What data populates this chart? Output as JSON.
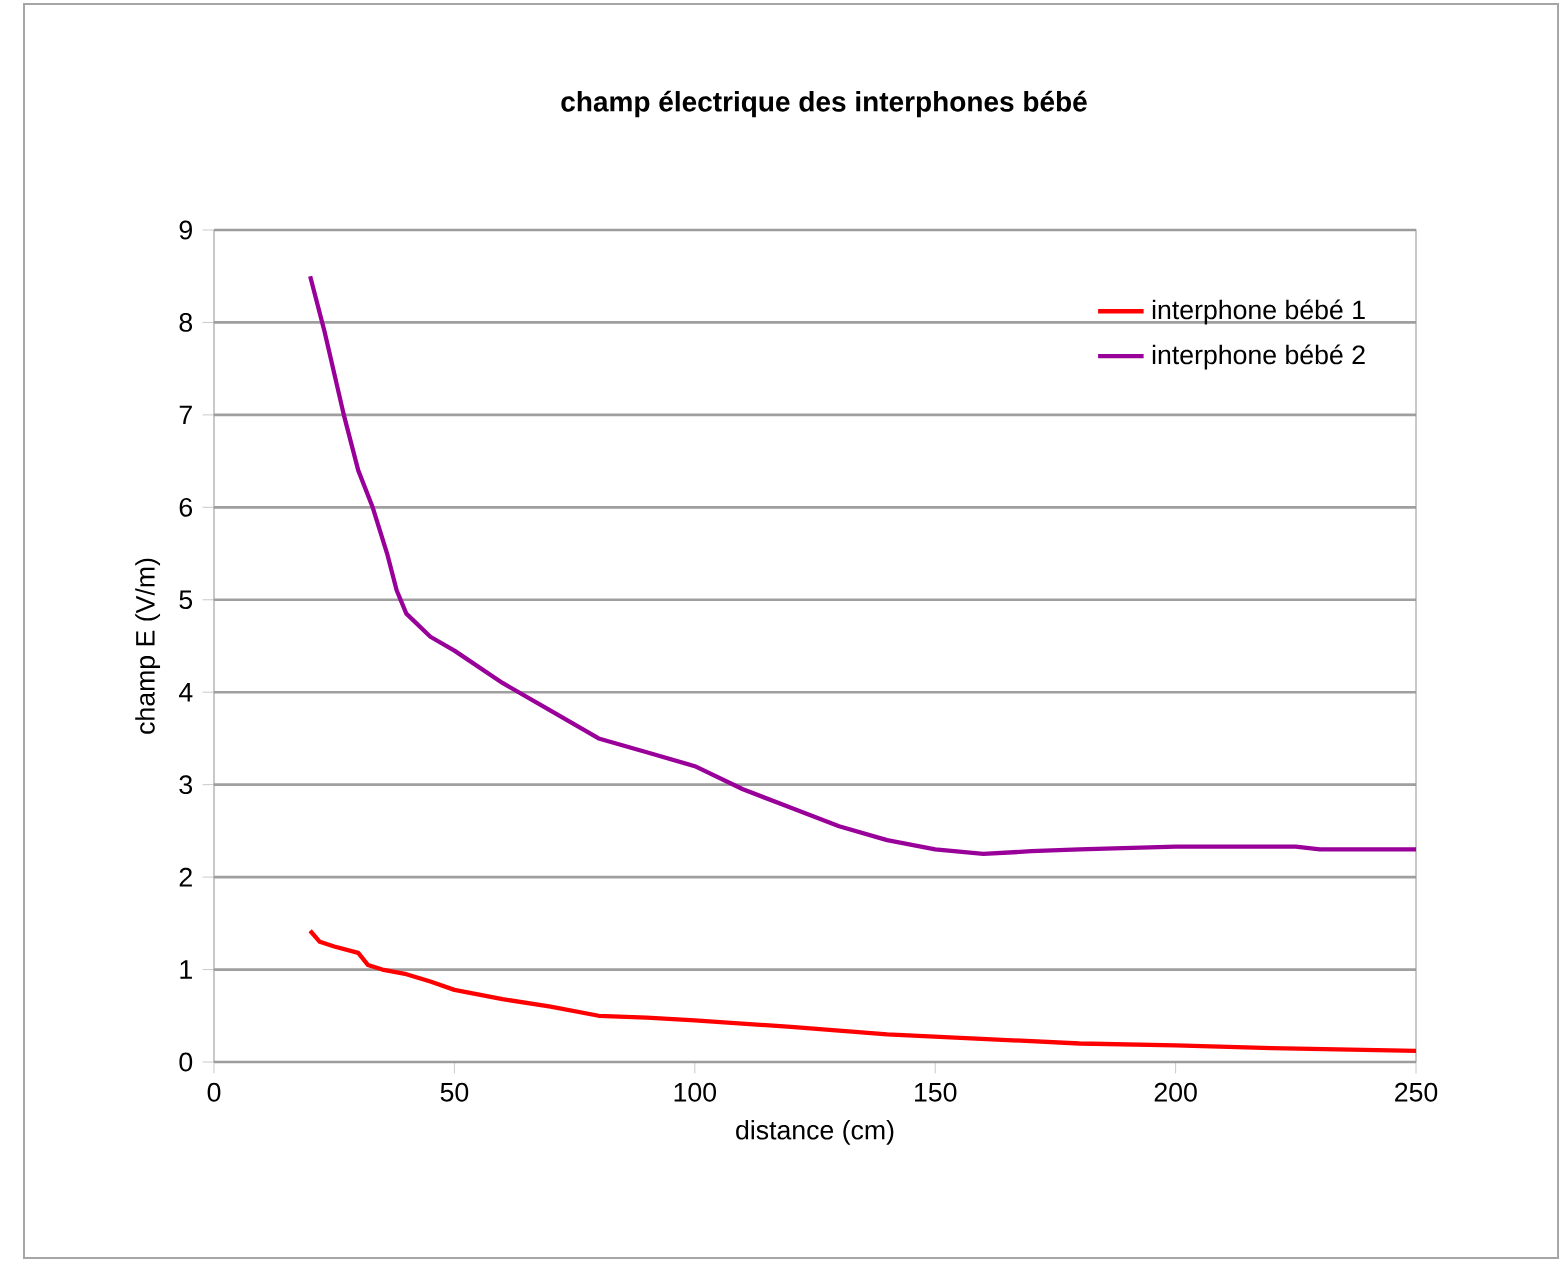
{
  "chart_data": {
    "type": "line",
    "title": "champ électrique des interphones bébé",
    "xlabel": "distance (cm)",
    "ylabel": "champ E (V/m)",
    "xlim": [
      0,
      250
    ],
    "xticks": [
      0,
      50,
      100,
      150,
      200,
      250
    ],
    "ylim": [
      0,
      9
    ],
    "yticks": [
      0,
      1,
      2,
      3,
      4,
      5,
      6,
      7,
      8,
      9
    ],
    "grid": "y",
    "legend": "top right",
    "marker": "none",
    "line_style": "solid",
    "series": [
      {
        "name": "interphone bébé 1",
        "color": "#ff0000",
        "x": [
          20,
          22,
          25,
          30,
          32,
          35,
          40,
          45,
          50,
          60,
          70,
          80,
          90,
          100,
          120,
          140,
          160,
          180,
          200,
          220,
          250
        ],
        "values": [
          1.42,
          1.3,
          1.25,
          1.18,
          1.05,
          1.0,
          0.95,
          0.87,
          0.78,
          0.68,
          0.6,
          0.5,
          0.48,
          0.45,
          0.38,
          0.3,
          0.25,
          0.2,
          0.18,
          0.15,
          0.12
        ]
      },
      {
        "name": "interphone bébé 2",
        "color": "#990099",
        "x": [
          20,
          23,
          27,
          30,
          33,
          36,
          38,
          40,
          45,
          50,
          60,
          70,
          80,
          90,
          100,
          110,
          120,
          130,
          140,
          150,
          160,
          170,
          180,
          200,
          225,
          230,
          250
        ],
        "values": [
          8.5,
          7.9,
          7.0,
          6.4,
          6.0,
          5.5,
          5.1,
          4.85,
          4.6,
          4.45,
          4.1,
          3.8,
          3.5,
          3.35,
          3.2,
          2.95,
          2.75,
          2.55,
          2.4,
          2.3,
          2.25,
          2.28,
          2.3,
          2.33,
          2.33,
          2.3,
          2.3
        ]
      }
    ]
  }
}
